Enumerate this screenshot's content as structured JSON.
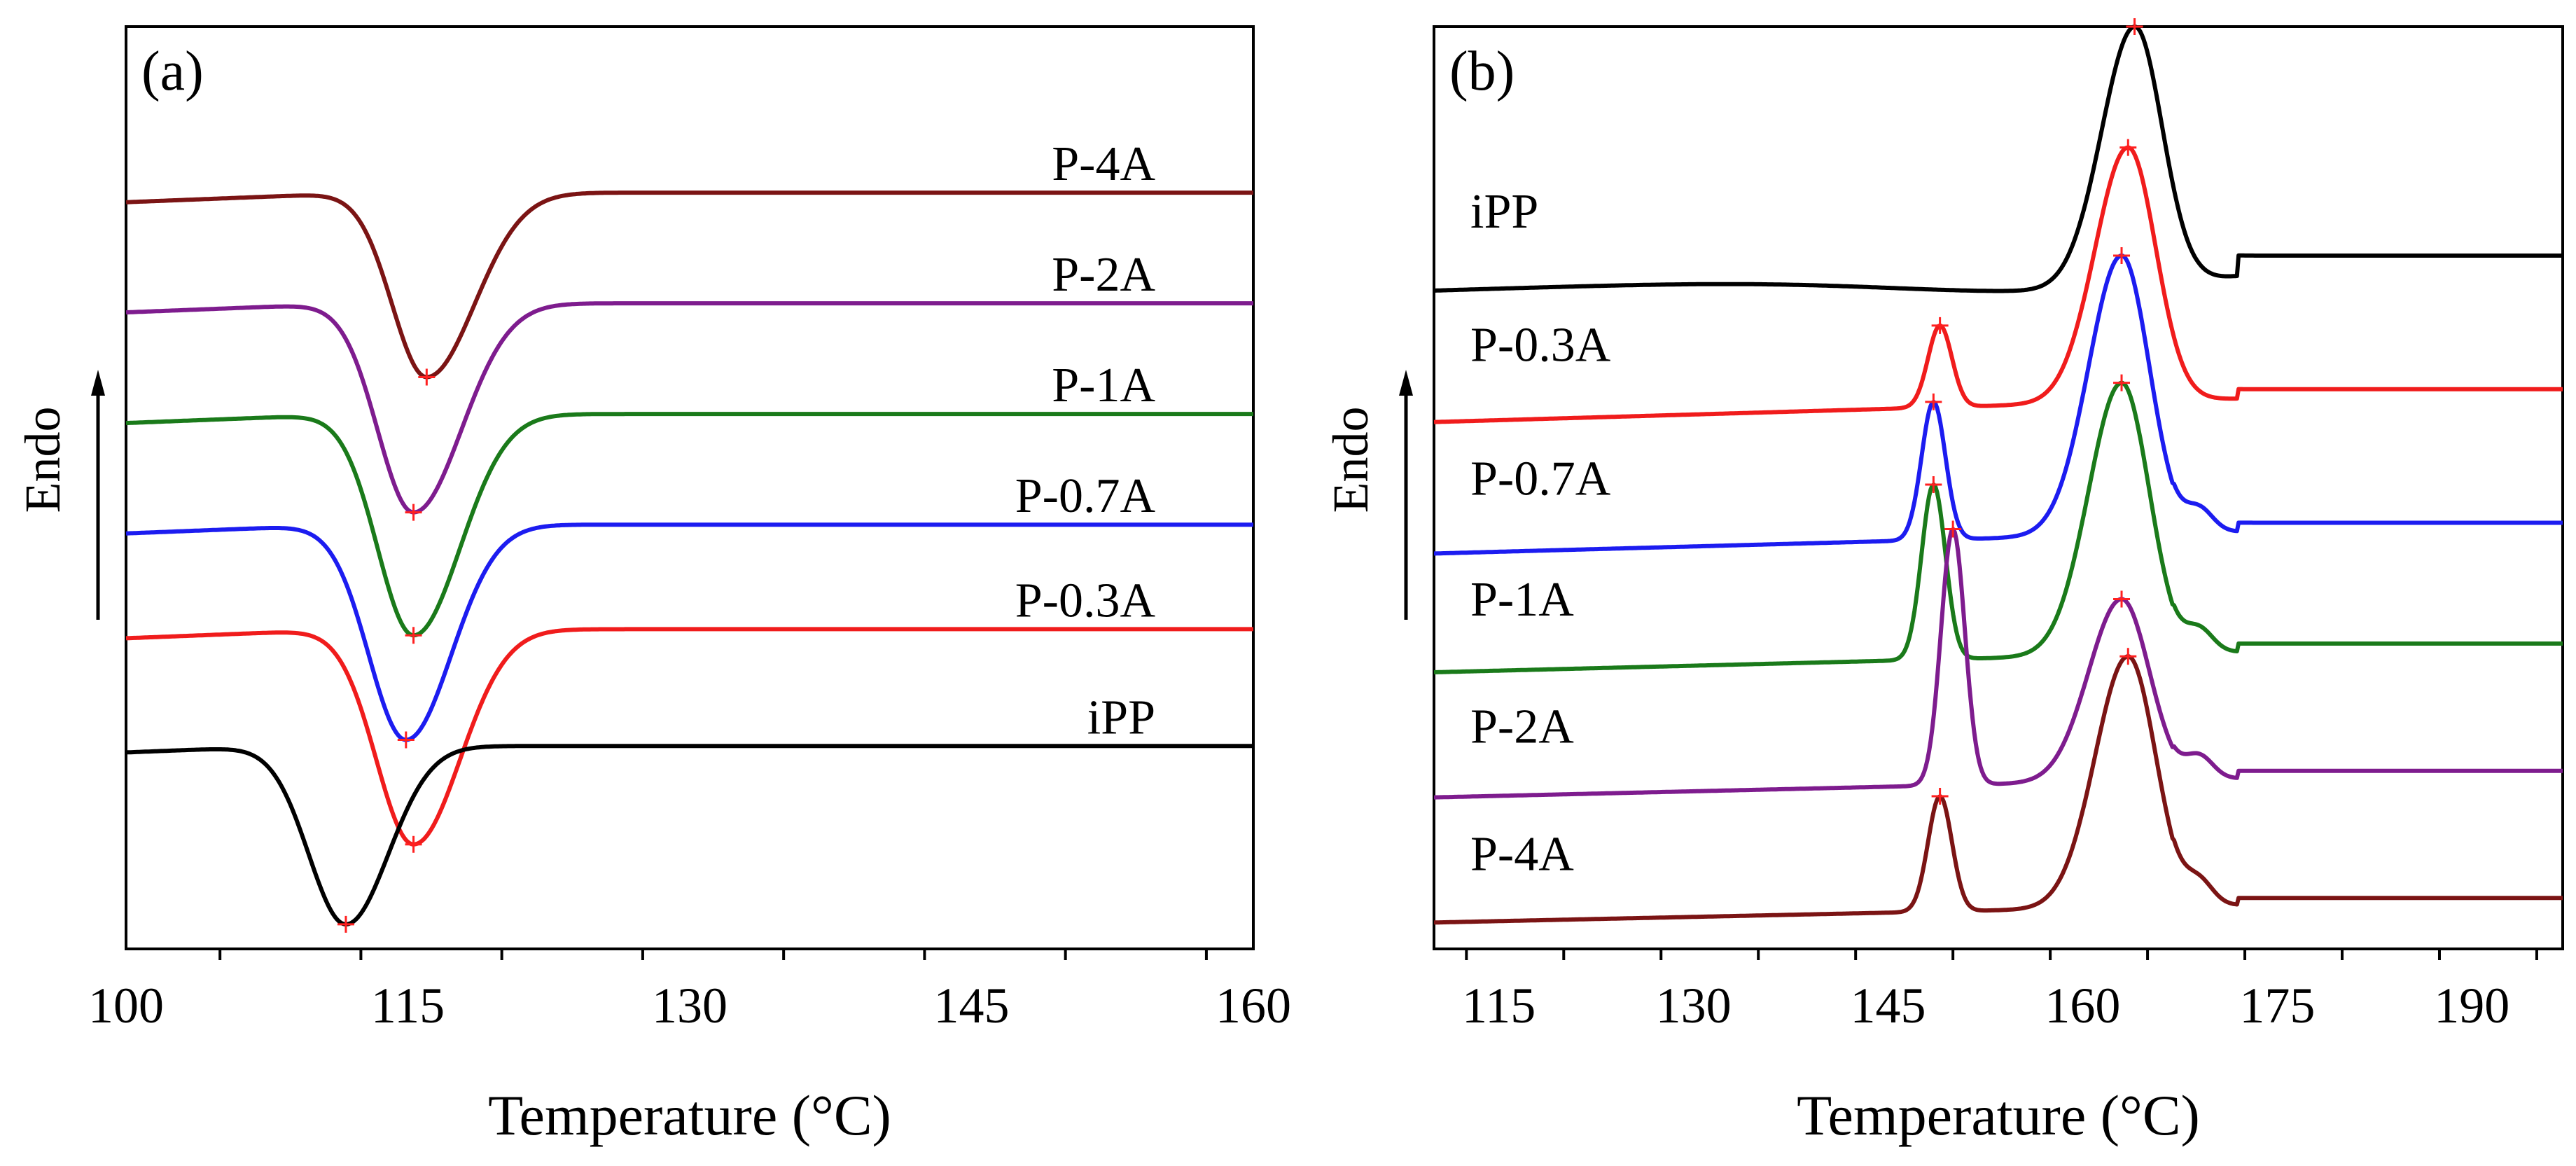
{
  "chart_data": [
    {
      "type": "line",
      "panel_label": "(a)",
      "title": "",
      "xlabel": "Temperature (°C)",
      "ylabel": "Endo",
      "xlim": [
        100,
        160
      ],
      "xticks": [
        100,
        115,
        130,
        145,
        160
      ],
      "ylim": [
        -1,
        14
      ],
      "y_ticks_shown": false,
      "series": [
        {
          "name": "P-4A",
          "color": "#7b1414",
          "label": "P-4A",
          "baseline": 11.3,
          "peak_temp": 116.0,
          "peak_value": 8.3,
          "peak_width_left": 2.6,
          "peak_width_right": 3.6,
          "x_min": 100
        },
        {
          "name": "P-2A",
          "color": "#7e1c8e",
          "label": "P-2A",
          "baseline": 9.5,
          "peak_temp": 115.3,
          "peak_value": 6.1,
          "peak_width_left": 2.7,
          "peak_width_right": 3.6,
          "x_min": 100
        },
        {
          "name": "P-1A",
          "color": "#1a7a1a",
          "label": "P-1A",
          "baseline": 7.7,
          "peak_temp": 115.3,
          "peak_value": 4.1,
          "peak_width_left": 2.7,
          "peak_width_right": 3.5,
          "x_min": 100
        },
        {
          "name": "P-0.7A",
          "color": "#1c1cf0",
          "label": "P-0.7A",
          "baseline": 5.9,
          "peak_temp": 114.9,
          "peak_value": 2.4,
          "peak_width_left": 2.8,
          "peak_width_right": 3.4,
          "x_min": 100
        },
        {
          "name": "P-0.3A",
          "color": "#f01c1c",
          "label": "P-0.3A",
          "baseline": 4.2,
          "peak_temp": 115.3,
          "peak_value": 0.7,
          "peak_width_left": 2.8,
          "peak_width_right": 3.5,
          "x_min": 100
        },
        {
          "name": "iPP",
          "color": "#000000",
          "label": "iPP",
          "baseline": 2.3,
          "peak_temp": 111.7,
          "peak_value": -0.6,
          "peak_width_left": 2.8,
          "peak_width_right": 3.2,
          "x_min": 100
        }
      ]
    },
    {
      "type": "line",
      "panel_label": "(b)",
      "title": "",
      "xlabel": "Temperature (°C)",
      "ylabel": "Endo",
      "xlim": [
        110,
        197
      ],
      "xticks": [
        115,
        130,
        145,
        160,
        175,
        190
      ],
      "ylim": [
        -0.5,
        14
      ],
      "y_ticks_shown": false,
      "series": [
        {
          "name": "iPP",
          "color": "#000000",
          "label": "iPP",
          "baseline": 10.4,
          "peaks": [
            {
              "temp": 164.0,
              "value": 14.0
            }
          ],
          "x_min": 110
        },
        {
          "name": "P-0.3A",
          "color": "#f01c1c",
          "label": "P-0.3A",
          "baseline": 8.3,
          "peaks": [
            {
              "temp": 149.0,
              "value": 9.3
            },
            {
              "temp": 163.5,
              "value": 12.1
            }
          ],
          "x_min": 110
        },
        {
          "name": "P-0.7A",
          "color": "#1c1cf0",
          "label": "P-0.7A",
          "baseline": 6.2,
          "peaks": [
            {
              "temp": 148.5,
              "value": 8.1
            },
            {
              "temp": 163.0,
              "value": 10.4
            }
          ],
          "x_min": 110
        },
        {
          "name": "P-1A",
          "color": "#1a7a1a",
          "label": "P-1A",
          "baseline": 4.3,
          "peaks": [
            {
              "temp": 148.5,
              "value": 6.8
            },
            {
              "temp": 163.0,
              "value": 8.4
            }
          ],
          "x_min": 110
        },
        {
          "name": "P-2A",
          "color": "#7e1c8e",
          "label": "P-2A",
          "baseline": 2.3,
          "peaks": [
            {
              "temp": 150.0,
              "value": 6.1
            },
            {
              "temp": 163.0,
              "value": 5.0
            }
          ],
          "x_min": 110
        },
        {
          "name": "P-4A",
          "color": "#7b1414",
          "label": "P-4A",
          "baseline": 0.3,
          "peaks": [
            {
              "temp": 149.0,
              "value": 1.9
            },
            {
              "temp": 163.5,
              "value": 4.1
            }
          ],
          "x_min": 110
        }
      ]
    }
  ]
}
